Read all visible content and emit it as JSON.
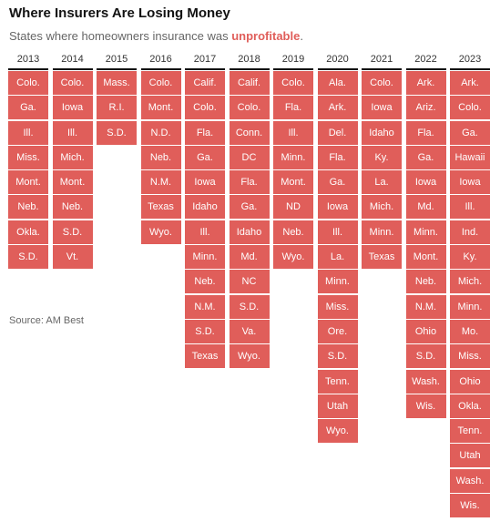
{
  "header": {
    "title": "Where Insurers Are Losing Money",
    "subtitle_pre": "States where homeowners insurance was ",
    "subtitle_highlight": "unprofitable",
    "subtitle_post": "."
  },
  "source": "Source: AM Best",
  "colors": {
    "cell": "#e05e5a",
    "highlight": "#e05e5a"
  },
  "chart_data": {
    "type": "table",
    "columns": [
      {
        "year": "2013",
        "states": [
          "Colo.",
          "Ga.",
          "Ill.",
          "Miss.",
          "Mont.",
          "Neb.",
          "Okla.",
          "S.D."
        ]
      },
      {
        "year": "2014",
        "states": [
          "Colo.",
          "Iowa",
          "Ill.",
          "Mich.",
          "Mont.",
          "Neb.",
          "S.D.",
          "Vt."
        ]
      },
      {
        "year": "2015",
        "states": [
          "Mass.",
          "R.I.",
          "S.D."
        ]
      },
      {
        "year": "2016",
        "states": [
          "Colo.",
          "Mont.",
          "N.D.",
          "Neb.",
          "N.M.",
          "Texas",
          "Wyo."
        ]
      },
      {
        "year": "2017",
        "states": [
          "Calif.",
          "Colo.",
          "Fla.",
          "Ga.",
          "Iowa",
          "Idaho",
          "Ill.",
          "Minn.",
          "Neb.",
          "N.M.",
          "S.D.",
          "Texas"
        ]
      },
      {
        "year": "2018",
        "states": [
          "Calif.",
          "Colo.",
          "Conn.",
          "DC",
          "Fla.",
          "Ga.",
          "Idaho",
          "Md.",
          "NC",
          "S.D.",
          "Va.",
          "Wyo."
        ]
      },
      {
        "year": "2019",
        "states": [
          "Colo.",
          "Fla.",
          "Ill.",
          "Minn.",
          "Mont.",
          "ND",
          "Neb.",
          "Wyo."
        ]
      },
      {
        "year": "2020",
        "states": [
          "Ala.",
          "Ark.",
          "Del.",
          "Fla.",
          "Ga.",
          "Iowa",
          "Ill.",
          "La.",
          "Minn.",
          "Miss.",
          "Ore.",
          "S.D.",
          "Tenn.",
          "Utah",
          "Wyo."
        ]
      },
      {
        "year": "2021",
        "states": [
          "Colo.",
          "Iowa",
          "Idaho",
          "Ky.",
          "La.",
          "Mich.",
          "Minn.",
          "Texas"
        ]
      },
      {
        "year": "2022",
        "states": [
          "Ark.",
          "Ariz.",
          "Fla.",
          "Ga.",
          "Iowa",
          "Md.",
          "Minn.",
          "Mont.",
          "Neb.",
          "N.M.",
          "Ohio",
          "S.D.",
          "Wash.",
          "Wis."
        ]
      },
      {
        "year": "2023",
        "states": [
          "Ark.",
          "Colo.",
          "Ga.",
          "Hawaii",
          "Iowa",
          "Ill.",
          "Ind.",
          "Ky.",
          "Mich.",
          "Minn.",
          "Mo.",
          "Miss.",
          "Ohio",
          "Okla.",
          "Tenn.",
          "Utah",
          "Wash.",
          "Wis."
        ]
      }
    ]
  }
}
